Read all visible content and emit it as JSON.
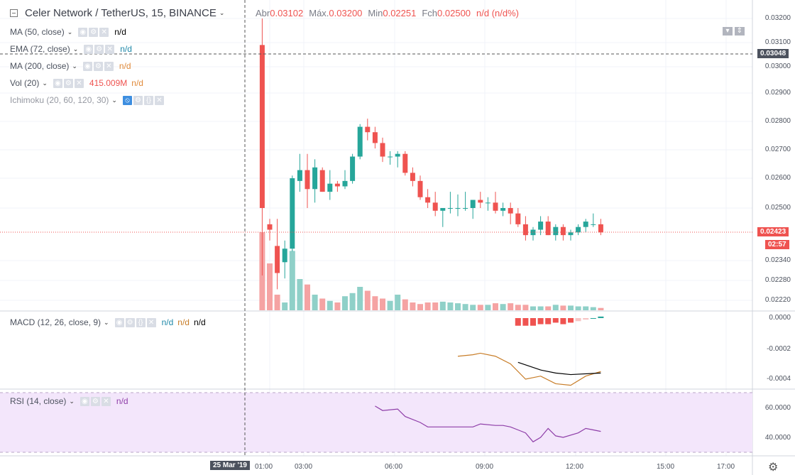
{
  "header": {
    "symbol_name": "Celer Network / TetherUS",
    "interval": "15",
    "exchange": "BINANCE",
    "open_label": "Abr",
    "open_value": "0.03102",
    "high_label": "Máx.",
    "high_value": "0.03200",
    "low_label": "Min",
    "low_value": "0.02251",
    "close_label": "Fch",
    "close_value": "0.02500",
    "change_value": "n/d (n/d%)"
  },
  "indicators": {
    "ma50": {
      "label": "MA (50, close)",
      "value": "n/d"
    },
    "ema72": {
      "label": "EMA (72, close)",
      "value": "n/d"
    },
    "ma200": {
      "label": "MA (200, close)",
      "value": "n/d"
    },
    "vol": {
      "label": "Vol (20)",
      "value1": "415.009M",
      "value2": "n/d"
    },
    "ichimoku": {
      "label": "Ichimoku (20, 60, 120, 30)"
    },
    "macd": {
      "label": "MACD (12, 26, close, 9)",
      "v1": "n/d",
      "v2": "n/d",
      "v3": "n/d"
    },
    "rsi": {
      "label": "RSI (14, close)",
      "value": "n/d"
    }
  },
  "price_axis": {
    "ticks": [
      "0.03200",
      "0.03100",
      "0.03000",
      "0.02900",
      "0.02800",
      "0.02700",
      "0.02600",
      "0.02500",
      "0.02340",
      "0.02280",
      "0.02220"
    ],
    "crosshair_price": "0.03048",
    "last_price": "0.02423",
    "countdown": "02:57"
  },
  "macd_axis": {
    "ticks": [
      "0.0000",
      "-0.0002",
      "-0.0004"
    ]
  },
  "rsi_axis": {
    "ticks": [
      "60.0000",
      "40.0000"
    ]
  },
  "time_axis": {
    "crosshair_label": "25 Mar '19",
    "ticks": [
      "01:00",
      "03:00",
      "06:00",
      "09:00",
      "12:00",
      "15:00",
      "17:00"
    ]
  },
  "colors": {
    "up": "#26a69a",
    "down": "#ef5350",
    "up_volume": "#8fd0c8",
    "down_volume": "#f5a3a3",
    "rsi_bg": "#f3e6fb",
    "rsi_line": "#8e3ea8",
    "macd_signal": "#c87d28",
    "macd_line": "#000000",
    "last_price_tag": "#ef5350",
    "crosshair_tag": "#4c525e"
  },
  "chart_data": {
    "type": "candlestick",
    "interval_minutes": 15,
    "candles": [
      {
        "t": "00:45",
        "o": 0.03102,
        "h": 0.032,
        "l": 0.02251,
        "c": 0.025,
        "v": 100
      },
      {
        "t": "01:00",
        "o": 0.0244,
        "h": 0.0246,
        "l": 0.0238,
        "c": 0.0242,
        "v": 60
      },
      {
        "t": "01:15",
        "o": 0.0236,
        "h": 0.0246,
        "l": 0.022,
        "c": 0.0226,
        "v": 20
      },
      {
        "t": "01:30",
        "o": 0.023,
        "h": 0.0238,
        "l": 0.0224,
        "c": 0.0235,
        "v": 10
      },
      {
        "t": "01:45",
        "o": 0.0235,
        "h": 0.0262,
        "l": 0.0234,
        "c": 0.0261,
        "v": 76
      },
      {
        "t": "02:00",
        "o": 0.026,
        "h": 0.027,
        "l": 0.0256,
        "c": 0.0264,
        "v": 40
      },
      {
        "t": "02:15",
        "o": 0.0264,
        "h": 0.027,
        "l": 0.025,
        "c": 0.0257,
        "v": 33
      },
      {
        "t": "02:30",
        "o": 0.0257,
        "h": 0.0268,
        "l": 0.0252,
        "c": 0.0265,
        "v": 20
      },
      {
        "t": "02:45",
        "o": 0.0264,
        "h": 0.0265,
        "l": 0.0256,
        "c": 0.0256,
        "v": 15
      },
      {
        "t": "03:00",
        "o": 0.0256,
        "h": 0.0264,
        "l": 0.0253,
        "c": 0.0259,
        "v": 12
      },
      {
        "t": "03:15",
        "o": 0.0259,
        "h": 0.026,
        "l": 0.0256,
        "c": 0.0258,
        "v": 10
      },
      {
        "t": "03:30",
        "o": 0.0258,
        "h": 0.0264,
        "l": 0.0257,
        "c": 0.026,
        "v": 18
      },
      {
        "t": "03:45",
        "o": 0.026,
        "h": 0.027,
        "l": 0.0259,
        "c": 0.0269,
        "v": 22
      },
      {
        "t": "04:00",
        "o": 0.0269,
        "h": 0.0281,
        "l": 0.0268,
        "c": 0.028,
        "v": 30
      },
      {
        "t": "04:15",
        "o": 0.028,
        "h": 0.0283,
        "l": 0.0275,
        "c": 0.0278,
        "v": 25
      },
      {
        "t": "04:30",
        "o": 0.0278,
        "h": 0.028,
        "l": 0.0272,
        "c": 0.0274,
        "v": 18
      },
      {
        "t": "04:45",
        "o": 0.0274,
        "h": 0.0276,
        "l": 0.0267,
        "c": 0.0269,
        "v": 15
      },
      {
        "t": "05:00",
        "o": 0.0269,
        "h": 0.0271,
        "l": 0.0266,
        "c": 0.0269,
        "v": 12
      },
      {
        "t": "05:15",
        "o": 0.0269,
        "h": 0.0271,
        "l": 0.0265,
        "c": 0.027,
        "v": 20
      },
      {
        "t": "05:30",
        "o": 0.027,
        "h": 0.0271,
        "l": 0.0262,
        "c": 0.0263,
        "v": 14
      },
      {
        "t": "05:45",
        "o": 0.0263,
        "h": 0.0265,
        "l": 0.0258,
        "c": 0.026,
        "v": 10
      },
      {
        "t": "06:00",
        "o": 0.026,
        "h": 0.0262,
        "l": 0.0253,
        "c": 0.0254,
        "v": 8
      },
      {
        "t": "06:15",
        "o": 0.0254,
        "h": 0.0257,
        "l": 0.025,
        "c": 0.0252,
        "v": 10
      },
      {
        "t": "06:30",
        "o": 0.0252,
        "h": 0.0256,
        "l": 0.0247,
        "c": 0.0249,
        "v": 10
      },
      {
        "t": "06:45",
        "o": 0.0249,
        "h": 0.025,
        "l": 0.0243,
        "c": 0.025,
        "v": 11
      },
      {
        "t": "07:00",
        "o": 0.025,
        "h": 0.0256,
        "l": 0.0248,
        "c": 0.025,
        "v": 10
      },
      {
        "t": "07:15",
        "o": 0.025,
        "h": 0.0255,
        "l": 0.0247,
        "c": 0.025,
        "v": 9
      },
      {
        "t": "07:30",
        "o": 0.025,
        "h": 0.0256,
        "l": 0.0249,
        "c": 0.025,
        "v": 8
      },
      {
        "t": "07:45",
        "o": 0.025,
        "h": 0.0253,
        "l": 0.0246,
        "c": 0.0253,
        "v": 7
      },
      {
        "t": "08:00",
        "o": 0.0253,
        "h": 0.0256,
        "l": 0.025,
        "c": 0.0252,
        "v": 7
      },
      {
        "t": "08:15",
        "o": 0.0252,
        "h": 0.0254,
        "l": 0.0249,
        "c": 0.0252,
        "v": 7
      },
      {
        "t": "08:30",
        "o": 0.0252,
        "h": 0.0256,
        "l": 0.0248,
        "c": 0.0249,
        "v": 9
      },
      {
        "t": "08:45",
        "o": 0.0249,
        "h": 0.0252,
        "l": 0.0247,
        "c": 0.025,
        "v": 8
      },
      {
        "t": "09:00",
        "o": 0.025,
        "h": 0.0252,
        "l": 0.0244,
        "c": 0.0248,
        "v": 9
      },
      {
        "t": "09:15",
        "o": 0.0248,
        "h": 0.025,
        "l": 0.0243,
        "c": 0.0244,
        "v": 7
      },
      {
        "t": "09:30",
        "o": 0.0244,
        "h": 0.0247,
        "l": 0.0238,
        "c": 0.024,
        "v": 7
      },
      {
        "t": "09:45",
        "o": 0.024,
        "h": 0.0243,
        "l": 0.0238,
        "c": 0.0242,
        "v": 5
      },
      {
        "t": "10:00",
        "o": 0.0242,
        "h": 0.0247,
        "l": 0.024,
        "c": 0.0245,
        "v": 5
      },
      {
        "t": "10:15",
        "o": 0.0245,
        "h": 0.0247,
        "l": 0.024,
        "c": 0.024,
        "v": 5
      },
      {
        "t": "10:30",
        "o": 0.024,
        "h": 0.0244,
        "l": 0.0238,
        "c": 0.0243,
        "v": 7
      },
      {
        "t": "10:45",
        "o": 0.0243,
        "h": 0.0244,
        "l": 0.0238,
        "c": 0.024,
        "v": 6
      },
      {
        "t": "11:00",
        "o": 0.024,
        "h": 0.0242,
        "l": 0.0238,
        "c": 0.0241,
        "v": 6
      },
      {
        "t": "11:15",
        "o": 0.0241,
        "h": 0.0244,
        "l": 0.024,
        "c": 0.0243,
        "v": 5
      },
      {
        "t": "11:30",
        "o": 0.0243,
        "h": 0.0246,
        "l": 0.0241,
        "c": 0.0245,
        "v": 5
      },
      {
        "t": "11:45",
        "o": 0.0244,
        "h": 0.0248,
        "l": 0.0243,
        "c": 0.0244,
        "v": 4
      },
      {
        "t": "12:00",
        "o": 0.0244,
        "h": 0.0246,
        "l": 0.024,
        "c": 0.0241,
        "v": 3
      }
    ],
    "macd_hist": [
      {
        "t": "09:15",
        "v": -5e-05
      },
      {
        "t": "09:30",
        "v": -5e-05
      },
      {
        "t": "09:45",
        "v": -5e-05
      },
      {
        "t": "10:00",
        "v": -4e-05
      },
      {
        "t": "10:15",
        "v": -4e-05
      },
      {
        "t": "10:30",
        "v": -3e-05
      },
      {
        "t": "10:45",
        "v": -4e-05
      },
      {
        "t": "11:00",
        "v": -3e-05
      },
      {
        "t": "11:15",
        "v": -2e-05
      },
      {
        "t": "11:30",
        "v": -1e-05
      },
      {
        "t": "11:45",
        "v": 0.0
      },
      {
        "t": "12:00",
        "v": 1e-05
      }
    ],
    "macd_signal": [
      {
        "t": "07:15",
        "v": -0.00025
      },
      {
        "t": "07:45",
        "v": -0.00024
      },
      {
        "t": "08:00",
        "v": -0.00023
      },
      {
        "t": "08:30",
        "v": -0.00025
      },
      {
        "t": "09:00",
        "v": -0.0003
      },
      {
        "t": "09:30",
        "v": -0.0004
      },
      {
        "t": "10:00",
        "v": -0.00038
      },
      {
        "t": "10:30",
        "v": -0.00043
      },
      {
        "t": "11:00",
        "v": -0.00044
      },
      {
        "t": "11:30",
        "v": -0.00038
      },
      {
        "t": "12:00",
        "v": -0.00035
      }
    ],
    "macd_line": [
      {
        "t": "09:15",
        "v": -0.00029
      },
      {
        "t": "10:00",
        "v": -0.00034
      },
      {
        "t": "10:30",
        "v": -0.00036
      },
      {
        "t": "11:00",
        "v": -0.00037
      },
      {
        "t": "12:00",
        "v": -0.00036
      }
    ],
    "rsi": [
      {
        "t": "04:30",
        "v": 61
      },
      {
        "t": "04:45",
        "v": 58
      },
      {
        "t": "05:15",
        "v": 59
      },
      {
        "t": "05:30",
        "v": 54
      },
      {
        "t": "06:00",
        "v": 50
      },
      {
        "t": "06:15",
        "v": 47
      },
      {
        "t": "06:45",
        "v": 47
      },
      {
        "t": "07:15",
        "v": 47
      },
      {
        "t": "07:45",
        "v": 47
      },
      {
        "t": "08:00",
        "v": 49
      },
      {
        "t": "08:30",
        "v": 48
      },
      {
        "t": "08:45",
        "v": 48
      },
      {
        "t": "09:00",
        "v": 47
      },
      {
        "t": "09:15",
        "v": 45
      },
      {
        "t": "09:30",
        "v": 43
      },
      {
        "t": "09:45",
        "v": 37
      },
      {
        "t": "10:00",
        "v": 40
      },
      {
        "t": "10:15",
        "v": 46
      },
      {
        "t": "10:30",
        "v": 41
      },
      {
        "t": "10:45",
        "v": 40
      },
      {
        "t": "11:15",
        "v": 43
      },
      {
        "t": "11:30",
        "v": 46
      },
      {
        "t": "11:45",
        "v": 45
      },
      {
        "t": "12:00",
        "v": 44
      }
    ]
  }
}
